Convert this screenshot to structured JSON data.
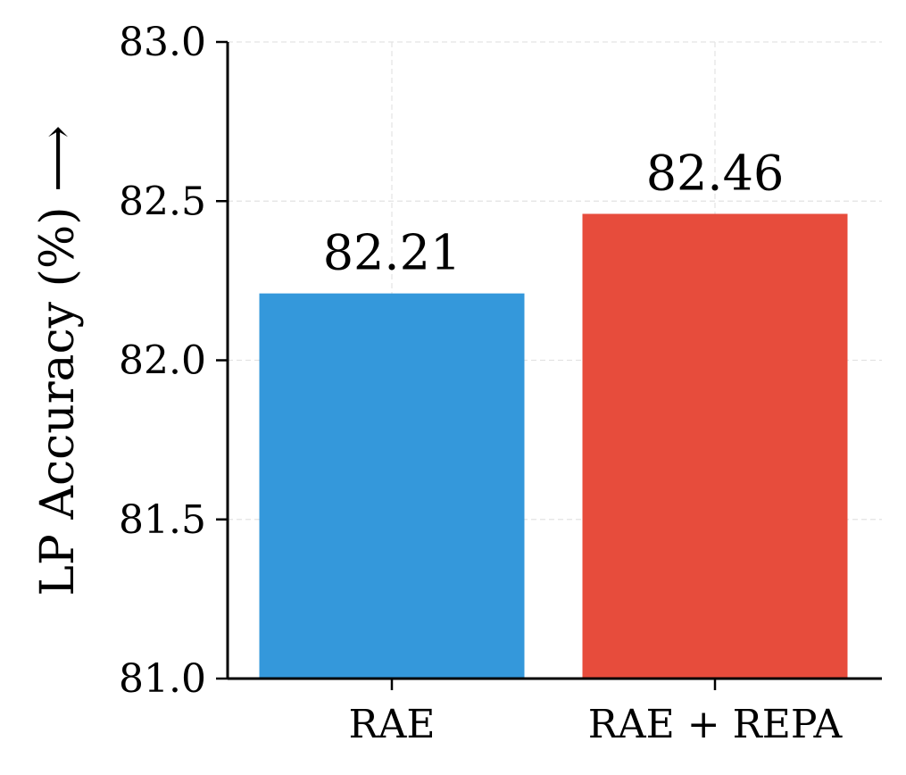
{
  "chart_data": {
    "type": "bar",
    "categories": [
      "RAE",
      "RAE + REPA"
    ],
    "values": [
      82.21,
      82.46
    ],
    "value_labels": [
      "82.21",
      "82.46"
    ],
    "colors": [
      "#3498db",
      "#e74c3c"
    ],
    "ylabel": "LP Accuracy (%) ⟶",
    "ylim": [
      81.0,
      83.0
    ],
    "yticks": [
      "81.0",
      "81.5",
      "82.0",
      "82.5",
      "83.0"
    ],
    "ytick_values": [
      81.0,
      81.5,
      82.0,
      82.5,
      83.0
    ],
    "grid": true
  }
}
